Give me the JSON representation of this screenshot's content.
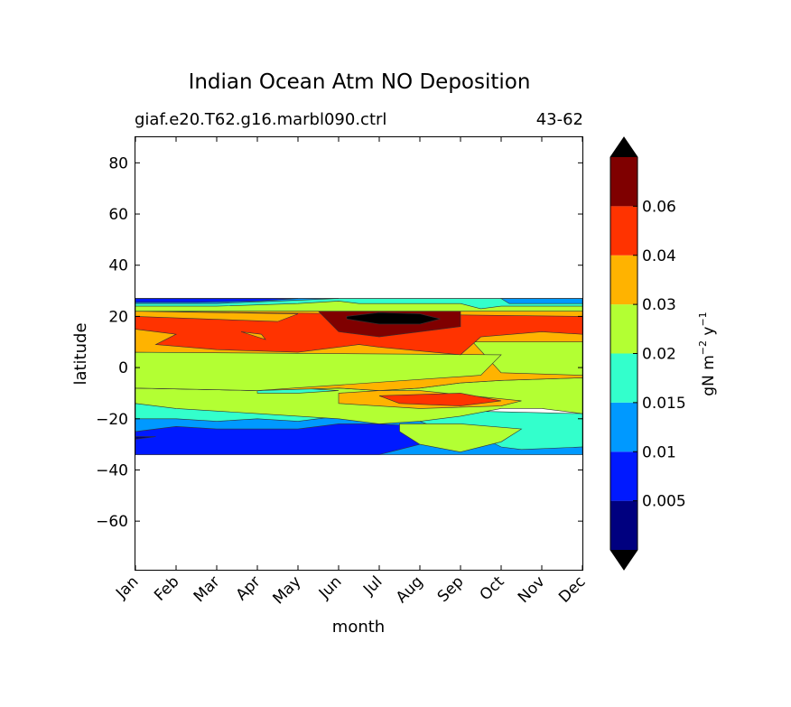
{
  "chart_data": {
    "type": "filled-contour",
    "title": "Indian Ocean Atm NO Deposition",
    "subtitle_left": "giaf.e20.T62.g16.marbl090.ctrl",
    "subtitle_right": "43-62",
    "xlabel": "month",
    "ylabel": "latitude",
    "x_ticks": [
      "Jan",
      "Feb",
      "Mar",
      "Apr",
      "May",
      "Jun",
      "Jul",
      "Aug",
      "Sep",
      "Oct",
      "Nov",
      "Dec"
    ],
    "xlim": [
      0,
      11
    ],
    "ylim": [
      -79,
      90
    ],
    "y_ticks": [
      80,
      60,
      40,
      20,
      0,
      -20,
      -40,
      -60
    ],
    "y_tick_labels": [
      "80",
      "60",
      "40",
      "20",
      "0",
      "−20",
      "−40",
      "−60"
    ],
    "data_lat_range": [
      -34,
      27
    ],
    "colorbar": {
      "label_main": "gN m",
      "label_exp1": "−2",
      "label_y": " y",
      "label_exp2": "−1",
      "levels": [
        0.005,
        0.01,
        0.015,
        0.02,
        0.03,
        0.04,
        0.06
      ],
      "tick_labels": [
        "0.005",
        "0.01",
        "0.015",
        "0.02",
        "0.03",
        "0.04",
        "0.06"
      ],
      "colors": [
        "#00007f",
        "#0019ff",
        "#0099ff",
        "#33ffcc",
        "#b3ff33",
        "#ffb300",
        "#ff3300",
        "#7f0000"
      ],
      "extend_min_color": "#000000",
      "extend_max_color": "#000000"
    },
    "regions": [
      {
        "band": 3,
        "color": "#33ffcc",
        "points": [
          [
            0,
            -34
          ],
          [
            0,
            -14
          ],
          [
            11,
            -18
          ],
          [
            11,
            -34
          ]
        ]
      },
      {
        "band": 2,
        "color": "#0099ff",
        "points": [
          [
            0,
            -34
          ],
          [
            0,
            -20
          ],
          [
            1,
            -20
          ],
          [
            2,
            -21
          ],
          [
            3,
            -20
          ],
          [
            4,
            -21
          ],
          [
            5,
            -19
          ],
          [
            6,
            -18
          ],
          [
            7,
            -21
          ],
          [
            7.5,
            -24
          ],
          [
            8.5,
            -27
          ],
          [
            9,
            -31
          ],
          [
            9.5,
            -32
          ],
          [
            11,
            -31
          ],
          [
            11,
            -34
          ]
        ]
      },
      {
        "band": 1,
        "color": "#0019ff",
        "points": [
          [
            0,
            -34
          ],
          [
            0,
            -25
          ],
          [
            1,
            -23
          ],
          [
            2,
            -24
          ],
          [
            3,
            -24
          ],
          [
            4,
            -24
          ],
          [
            5,
            -22
          ],
          [
            6,
            -22
          ],
          [
            7,
            -23
          ],
          [
            8,
            -23
          ],
          [
            7.5,
            -28
          ],
          [
            6.5,
            -32
          ],
          [
            6,
            -34
          ]
        ]
      },
      {
        "band": 0,
        "color": "#00007f",
        "points": [
          [
            0,
            -27
          ],
          [
            0.5,
            -27
          ],
          [
            0,
            -28
          ]
        ]
      },
      {
        "band": 4,
        "color": "#b3ff33",
        "points": [
          [
            0,
            -14
          ],
          [
            0,
            -8
          ],
          [
            3,
            -9
          ],
          [
            5,
            -8
          ],
          [
            6,
            -9
          ],
          [
            7,
            -8
          ],
          [
            8,
            -6
          ],
          [
            9,
            -5
          ],
          [
            11,
            -4
          ],
          [
            11,
            -18
          ],
          [
            10,
            -16
          ],
          [
            9,
            -16
          ],
          [
            8,
            -19
          ],
          [
            7,
            -21
          ],
          [
            6,
            -22
          ],
          [
            5,
            -20
          ],
          [
            3,
            -18
          ],
          [
            1,
            -16
          ]
        ]
      },
      {
        "band": 4,
        "color": "#b3ff33",
        "points": [
          [
            6.5,
            -22
          ],
          [
            8,
            -22
          ],
          [
            9.5,
            -24
          ],
          [
            9,
            -29
          ],
          [
            8,
            -33
          ],
          [
            7,
            -30
          ],
          [
            6.5,
            -25
          ]
        ]
      },
      {
        "band": 3,
        "color": "#33ffcc",
        "points": [
          [
            3,
            -9
          ],
          [
            4,
            -8
          ],
          [
            5,
            -9
          ],
          [
            4,
            -10
          ],
          [
            3,
            -10
          ]
        ]
      },
      {
        "band": 3,
        "color": "#33ffcc",
        "points": [
          [
            8.5,
            -2
          ],
          [
            9.5,
            0
          ],
          [
            10.5,
            0
          ],
          [
            10.7,
            -3
          ],
          [
            9.5,
            -4
          ],
          [
            8.7,
            -4
          ]
        ]
      },
      {
        "band": 2,
        "color": "#0099ff",
        "points": [
          [
            9.8,
            -1
          ],
          [
            10.2,
            -1
          ],
          [
            10.4,
            -2
          ],
          [
            9.9,
            -2
          ]
        ]
      },
      {
        "band": 5,
        "color": "#ffb300",
        "points": [
          [
            0,
            -8
          ],
          [
            0,
            22
          ],
          [
            11,
            22
          ],
          [
            11,
            -4
          ],
          [
            9,
            -5
          ],
          [
            8,
            -6
          ],
          [
            7,
            -8
          ],
          [
            6,
            -9
          ],
          [
            5,
            -8
          ],
          [
            3,
            -9
          ]
        ]
      },
      {
        "band": 5,
        "color": "#ffb300",
        "points": [
          [
            5,
            -10
          ],
          [
            6,
            -9
          ],
          [
            7,
            -9
          ],
          [
            9.5,
            -13
          ],
          [
            9,
            -15
          ],
          [
            7,
            -16
          ],
          [
            5,
            -14
          ]
        ]
      },
      {
        "band": 6,
        "color": "#ff3300",
        "points": [
          [
            6,
            -11
          ],
          [
            8,
            -10
          ],
          [
            9,
            -13
          ],
          [
            8,
            -15
          ],
          [
            6.5,
            -14
          ]
        ]
      },
      {
        "band": 4,
        "color": "#b3ff33",
        "points": [
          [
            8.3,
            10
          ],
          [
            9,
            -2
          ],
          [
            11,
            -3
          ],
          [
            11,
            10
          ]
        ]
      },
      {
        "band": 4,
        "color": "#b3ff33",
        "points": [
          [
            0,
            6
          ],
          [
            0,
            -8
          ],
          [
            3,
            -9
          ],
          [
            8.5,
            -3
          ],
          [
            9,
            5
          ]
        ]
      },
      {
        "band": 6,
        "color": "#ff3300",
        "points": [
          [
            0.5,
            9
          ],
          [
            2,
            7
          ],
          [
            4,
            6
          ],
          [
            5.5,
            9
          ],
          [
            6,
            8
          ],
          [
            8,
            5
          ],
          [
            8.5,
            12
          ],
          [
            10,
            14
          ],
          [
            11,
            13
          ],
          [
            11,
            20
          ],
          [
            0,
            22
          ],
          [
            0,
            15
          ],
          [
            1,
            13
          ]
        ]
      },
      {
        "band": 5,
        "color": "#ffb300",
        "points": [
          [
            2.6,
            14
          ],
          [
            3,
            12
          ],
          [
            3.2,
            11
          ],
          [
            3.1,
            13
          ]
        ]
      },
      {
        "band": 7,
        "color": "#7f0000",
        "points": [
          [
            4.5,
            22
          ],
          [
            5,
            14
          ],
          [
            6,
            12
          ],
          [
            7,
            14
          ],
          [
            8,
            16
          ],
          [
            8,
            22
          ],
          [
            7,
            24
          ],
          [
            5.5,
            24
          ]
        ]
      },
      {
        "band": 8,
        "color": "#000000",
        "points": [
          [
            5.2,
            19
          ],
          [
            6,
            17
          ],
          [
            7,
            17
          ],
          [
            7.5,
            19
          ],
          [
            7,
            21
          ],
          [
            6,
            21.5
          ],
          [
            5.2,
            20
          ]
        ]
      },
      {
        "band": 5,
        "color": "#ffb300",
        "points": [
          [
            0,
            20
          ],
          [
            3.5,
            18
          ],
          [
            4,
            21
          ],
          [
            0,
            22
          ]
        ]
      },
      {
        "band": 4,
        "color": "#b3ff33",
        "points": [
          [
            0,
            22
          ],
          [
            11,
            22
          ],
          [
            11,
            27
          ],
          [
            0,
            27
          ]
        ]
      },
      {
        "band": 3,
        "color": "#33ffcc",
        "points": [
          [
            0,
            24
          ],
          [
            2,
            24
          ],
          [
            4,
            25
          ],
          [
            5,
            26
          ],
          [
            5.5,
            25
          ],
          [
            8,
            25
          ],
          [
            8.5,
            23
          ],
          [
            9,
            24
          ],
          [
            11,
            24
          ],
          [
            11,
            27
          ],
          [
            0,
            27
          ]
        ]
      },
      {
        "band": 2,
        "color": "#0099ff",
        "points": [
          [
            0,
            27
          ],
          [
            0,
            25
          ],
          [
            2,
            25
          ],
          [
            3.5,
            26
          ],
          [
            5,
            27
          ]
        ]
      },
      {
        "band": 2,
        "color": "#0099ff",
        "points": [
          [
            9,
            27
          ],
          [
            9.2,
            25
          ],
          [
            11,
            25
          ],
          [
            11,
            27
          ]
        ]
      },
      {
        "band": 1,
        "color": "#0019ff",
        "points": [
          [
            0,
            27
          ],
          [
            0,
            25.5
          ],
          [
            1.5,
            25.5
          ],
          [
            3,
            26
          ],
          [
            4,
            27
          ]
        ]
      }
    ]
  }
}
